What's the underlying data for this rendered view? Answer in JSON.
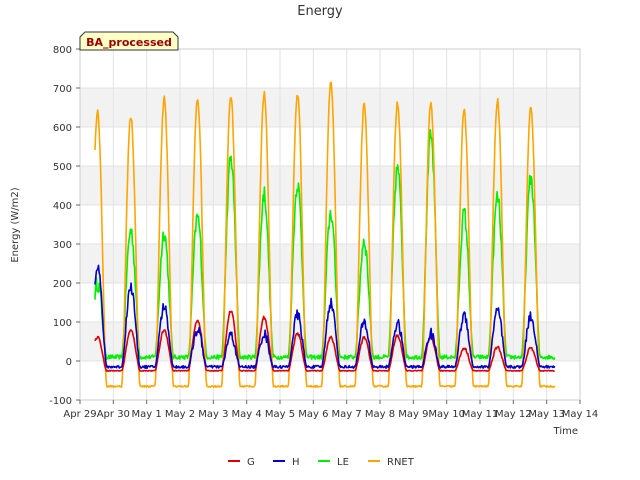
{
  "chart_data": {
    "type": "line",
    "title": "Energy",
    "xlabel": "Time",
    "ylabel": "Energy (W/m2)",
    "badge": "BA_processed",
    "ylim": [
      -100,
      800
    ],
    "xlim": [
      "2024-04-29",
      "2024-05-14"
    ],
    "y_ticks": [
      -100,
      0,
      100,
      200,
      300,
      400,
      500,
      600,
      700,
      800
    ],
    "x_ticks": [
      "Apr 29",
      "Apr 30",
      "May 1",
      "May 2",
      "May 3",
      "May 4",
      "May 5",
      "May 6",
      "May 7",
      "May 8",
      "May 9",
      "May 10",
      "May 11",
      "May 12",
      "May 13",
      "May 14"
    ],
    "grid": true,
    "legend_position": "bottom-center",
    "series": [
      {
        "name": "G",
        "color": "#dd0000",
        "daily_peak": [
          62,
          78,
          80,
          105,
          128,
          112,
          70,
          60,
          60,
          65,
          60,
          33,
          35,
          33
        ],
        "night_value": -25
      },
      {
        "name": "H",
        "color": "#0000cc",
        "daily_peak": [
          245,
          190,
          140,
          80,
          65,
          70,
          118,
          150,
          98,
          95,
          70,
          118,
          128,
          115
        ],
        "night_value": -15
      },
      {
        "name": "LE",
        "color": "#00ee00",
        "daily_peak": [
          200,
          335,
          330,
          370,
          520,
          430,
          455,
          380,
          310,
          495,
          575,
          380,
          420,
          470
        ],
        "night_value": 10
      },
      {
        "name": "RNET",
        "color": "#ffa500",
        "daily_peak": [
          640,
          628,
          675,
          672,
          680,
          685,
          685,
          710,
          655,
          663,
          658,
          645,
          667,
          648
        ],
        "night_value": -65
      }
    ]
  }
}
